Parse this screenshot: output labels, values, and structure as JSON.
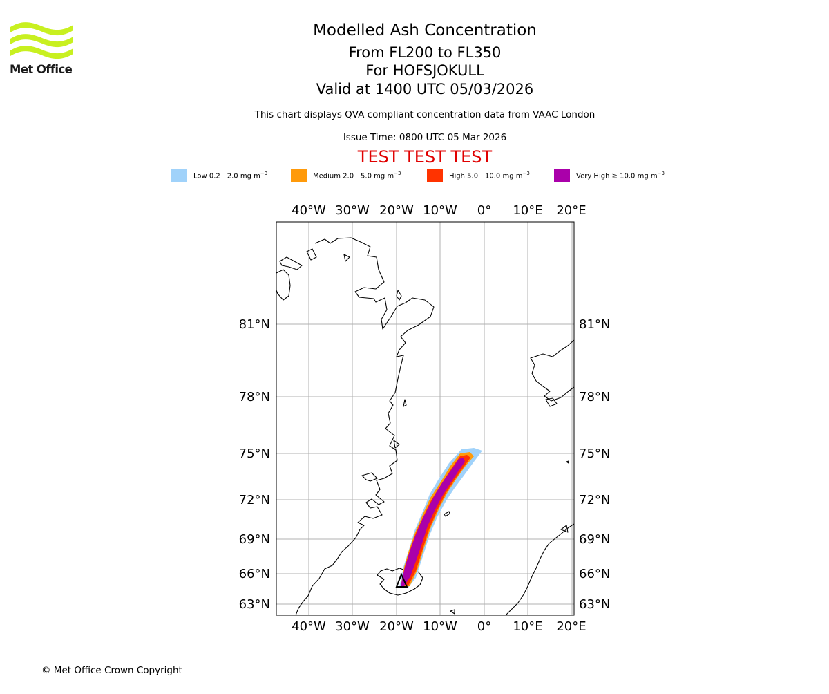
{
  "logo": {
    "text": "Met Office"
  },
  "header": {
    "title": "Modelled Ash Concentration",
    "flight_levels": "From FL200 to FL350",
    "volcano": "For HOFSJOKULL",
    "valid_time": "Valid at 1400 UTC 05/03/2026",
    "description": "This chart displays QVA compliant concentration data from VAAC London",
    "issue_time": "Issue Time: 0800 UTC 05 Mar 2026",
    "test_banner": "TEST TEST TEST"
  },
  "legend": [
    {
      "label": "Low 0.2 - 2.0 mg m",
      "unit_exp": "−3",
      "color": "#a0d2fa"
    },
    {
      "label": "Medium 2.0 - 5.0 mg m",
      "unit_exp": "−3",
      "color": "#ff9a0a"
    },
    {
      "label": "High 5.0 - 10.0 mg m",
      "unit_exp": "−3",
      "color": "#ff3300"
    },
    {
      "label": "Very High  ≥  10.0 mg m",
      "unit_exp": "−3",
      "color": "#aa00aa"
    }
  ],
  "map": {
    "lon_labels": [
      "40°W",
      "30°W",
      "20°W",
      "10°W",
      "0°",
      "10°E",
      "20°E"
    ],
    "lat_labels": [
      "81°N",
      "78°N",
      "75°N",
      "72°N",
      "69°N",
      "66°N",
      "63°N"
    ],
    "volcano_marker": "triangle"
  },
  "footer": {
    "copyright": "© Met Office Crown Copyright"
  }
}
